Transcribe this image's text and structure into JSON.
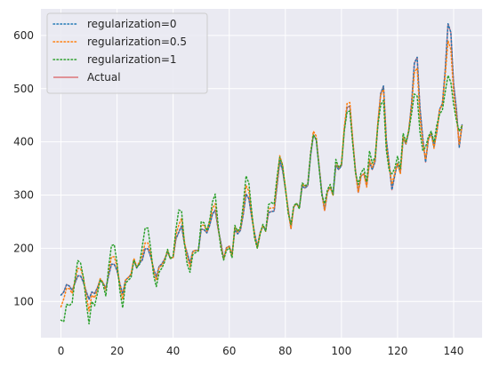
{
  "chart_data": {
    "type": "line",
    "title": "",
    "xlabel": "",
    "ylabel": "",
    "xlim": [
      -7.15,
      150.15
    ],
    "ylim": [
      32,
      650
    ],
    "x_ticks": [
      0,
      20,
      40,
      60,
      80,
      100,
      120,
      140
    ],
    "y_ticks": [
      100,
      200,
      300,
      400,
      500,
      600
    ],
    "grid": true,
    "legend_position": "top-left",
    "background_color": "#eaeaf2",
    "series": [
      {
        "name": "regularization=0",
        "color": "#1f77b4",
        "linestyle": "dotted",
        "values": [
          112,
          118,
          132,
          129,
          121,
          135,
          148,
          148,
          136,
          119,
          104,
          118,
          115,
          126,
          141,
          135,
          125,
          149,
          170,
          170,
          158,
          133,
          114,
          140,
          145,
          150,
          178,
          163,
          172,
          178,
          199,
          199,
          184,
          162,
          146,
          166,
          171,
          180,
          193,
          181,
          183,
          218,
          230,
          242,
          209,
          191,
          172,
          194,
          196,
          196,
          236,
          235,
          229,
          243,
          264,
          272,
          237,
          211,
          180,
          201,
          204,
          188,
          235,
          227,
          234,
          264,
          302,
          293,
          259,
          229,
          203,
          229,
          242,
          233,
          267,
          269,
          270,
          315,
          364,
          347,
          312,
          274,
          237,
          278,
          284,
          277,
          317,
          313,
          318,
          374,
          413,
          405,
          355,
          306,
          271,
          306,
          315,
          301,
          356,
          348,
          355,
          422,
          465,
          467,
          404,
          347,
          305,
          336,
          340,
          318,
          362,
          348,
          363,
          435,
          491,
          505,
          404,
          359,
          310,
          337,
          360,
          342,
          406,
          396,
          420,
          472,
          548,
          559,
          463,
          407,
          362,
          405,
          417,
          391,
          419,
          461,
          472,
          535,
          622,
          606,
          508,
          461,
          390,
          432
        ]
      },
      {
        "name": "regularization=0.5",
        "color": "#ff7f0e",
        "linestyle": "dotted",
        "values": [
          90,
          105,
          125,
          124,
          115,
          140,
          162,
          162,
          145,
          112,
          82,
          112,
          107,
          123,
          143,
          136,
          121,
          155,
          184,
          184,
          166,
          131,
          104,
          140,
          145,
          152,
          181,
          166,
          174,
          187,
          210,
          210,
          190,
          158,
          140,
          164,
          168,
          179,
          196,
          181,
          183,
          226,
          244,
          256,
          213,
          184,
          165,
          194,
          196,
          196,
          244,
          243,
          233,
          249,
          275,
          284,
          239,
          206,
          180,
          200,
          204,
          186,
          240,
          231,
          237,
          271,
          318,
          307,
          264,
          225,
          200,
          228,
          243,
          232,
          274,
          276,
          276,
          323,
          374,
          357,
          315,
          270,
          237,
          278,
          284,
          275,
          321,
          316,
          321,
          379,
          420,
          411,
          357,
          301,
          271,
          306,
          315,
          299,
          361,
          351,
          358,
          427,
          472,
          474,
          406,
          344,
          305,
          336,
          340,
          315,
          367,
          352,
          367,
          438,
          488,
          499,
          394,
          354,
          320,
          341,
          360,
          340,
          409,
          397,
          423,
          466,
          530,
          539,
          446,
          398,
          367,
          405,
          415,
          388,
          418,
          460,
          470,
          525,
          590,
          574,
          492,
          448,
          396,
          432
        ]
      },
      {
        "name": "regularization=1",
        "color": "#2ca02c",
        "linestyle": "dotted",
        "values": [
          65,
          62,
          95,
          92,
          98,
          142,
          177,
          172,
          145,
          99,
          58,
          100,
          92,
          115,
          141,
          132,
          110,
          165,
          205,
          207,
          172,
          120,
          88,
          134,
          140,
          145,
          178,
          164,
          170,
          204,
          238,
          238,
          199,
          150,
          128,
          155,
          163,
          175,
          198,
          180,
          186,
          236,
          272,
          270,
          210,
          170,
          155,
          188,
          192,
          195,
          250,
          248,
          233,
          252,
          287,
          302,
          245,
          200,
          178,
          196,
          201,
          182,
          243,
          232,
          240,
          283,
          336,
          322,
          270,
          220,
          200,
          226,
          245,
          232,
          282,
          286,
          283,
          332,
          371,
          356,
          313,
          266,
          245,
          280,
          285,
          274,
          323,
          318,
          320,
          378,
          413,
          404,
          353,
          300,
          284,
          310,
          320,
          301,
          367,
          352,
          357,
          420,
          456,
          458,
          397,
          342,
          320,
          342,
          350,
          325,
          383,
          360,
          372,
          431,
          470,
          478,
          384,
          347,
          340,
          350,
          373,
          350,
          416,
          400,
          420,
          453,
          490,
          486,
          418,
          384,
          390,
          410,
          420,
          400,
          432,
          452,
          460,
          494,
          525,
          512,
          470,
          440,
          420,
          430
        ]
      },
      {
        "name": "Actual",
        "color": "#d62728",
        "linestyle": "solid",
        "values": [
          112,
          118,
          132,
          129,
          121,
          135,
          148,
          148,
          136,
          119,
          104,
          118,
          115,
          126,
          141,
          135,
          125,
          149,
          170,
          170,
          158,
          133,
          114,
          140,
          145,
          150,
          178,
          163,
          172,
          178,
          199,
          199,
          184,
          162,
          146,
          166,
          171,
          180,
          193,
          181,
          183,
          218,
          230,
          242,
          209,
          191,
          172,
          194,
          196,
          196,
          236,
          235,
          229,
          243,
          264,
          272,
          237,
          211,
          180,
          201,
          204,
          188,
          235,
          227,
          234,
          264,
          302,
          293,
          259,
          229,
          203,
          229,
          242,
          233,
          267,
          269,
          270,
          315,
          364,
          347,
          312,
          274,
          237,
          278,
          284,
          277,
          317,
          313,
          318,
          374,
          413,
          405,
          355,
          306,
          271,
          306,
          315,
          301,
          356,
          348,
          355,
          422,
          465,
          467,
          404,
          347,
          305,
          336,
          340,
          318,
          362,
          348,
          363,
          435,
          491,
          505,
          404,
          359,
          310,
          337,
          360,
          342,
          406,
          396,
          420,
          472,
          548,
          559,
          463,
          407,
          362,
          405,
          417,
          391,
          419,
          461,
          472,
          535,
          622,
          606,
          508,
          461,
          390,
          432
        ]
      }
    ]
  }
}
